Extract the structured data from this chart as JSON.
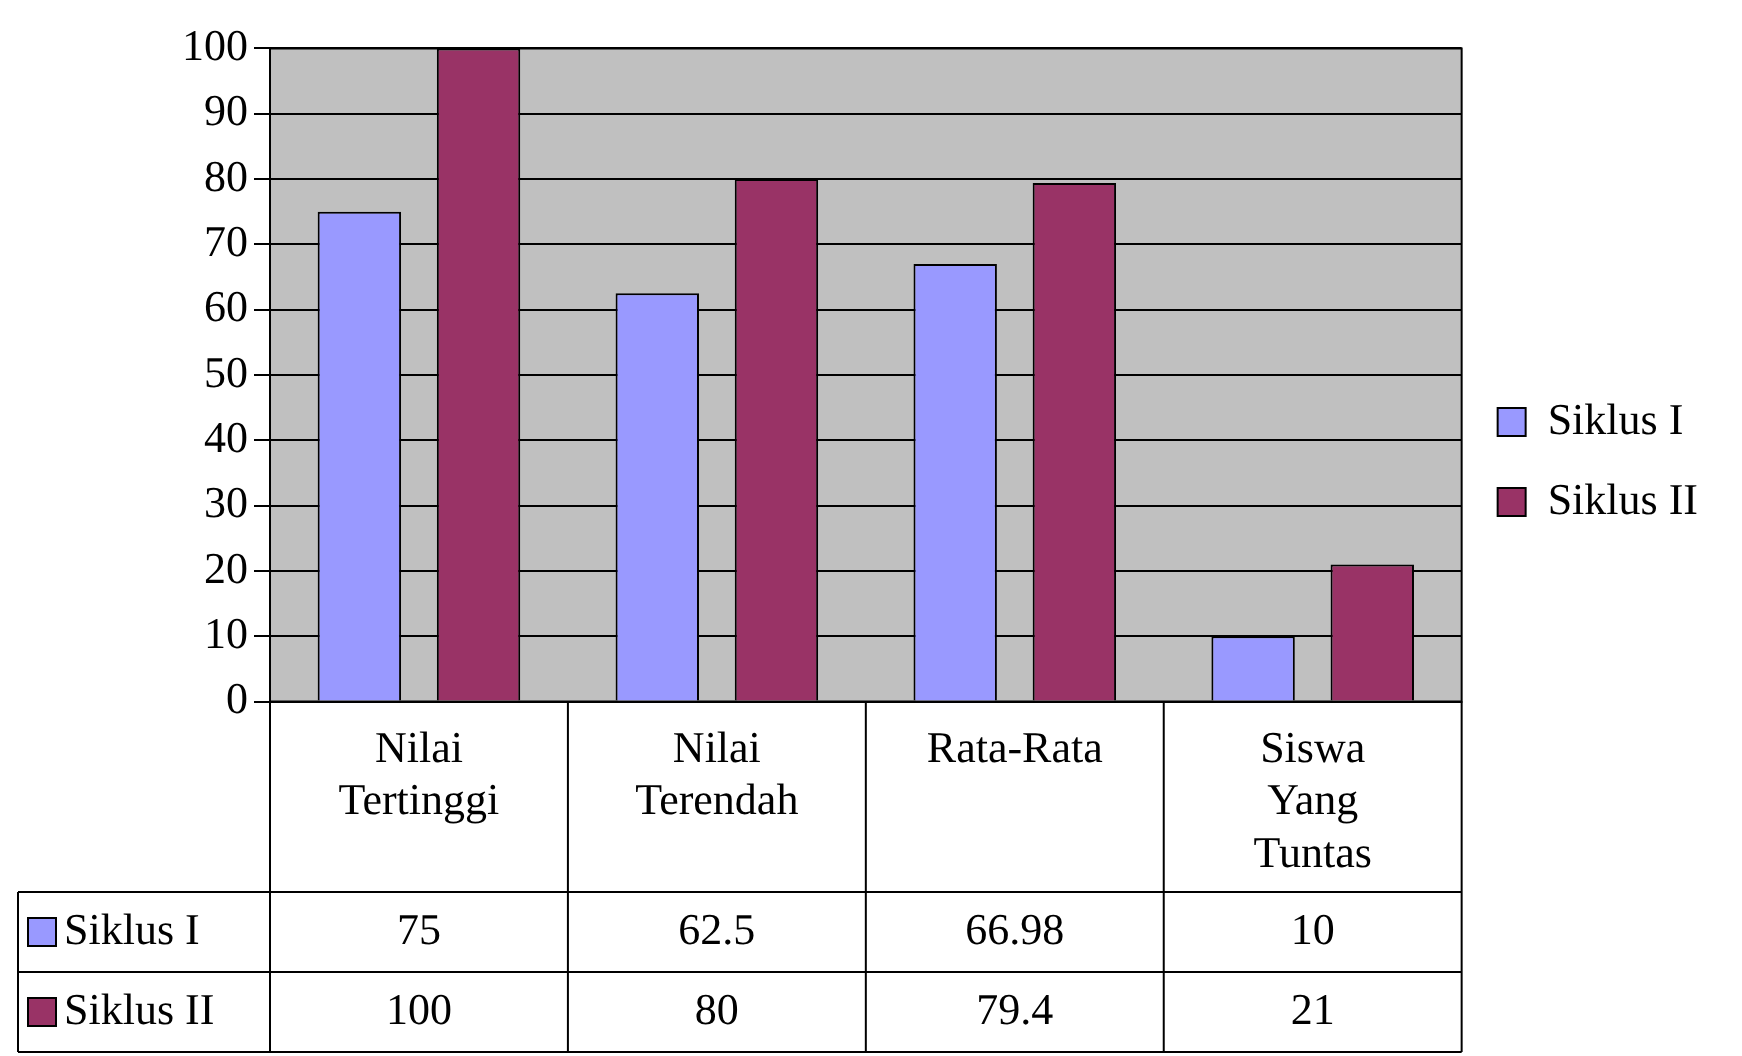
{
  "chart_data": {
    "type": "bar",
    "categories": [
      "Nilai Tertinggi",
      "Nilai Terendah",
      "Rata-Rata",
      "Siswa Yang Tuntas"
    ],
    "series": [
      {
        "name": "Siklus I",
        "color": "#9999ff",
        "values": [
          75,
          62.5,
          66.98,
          10
        ]
      },
      {
        "name": "Siklus II",
        "color": "#993366",
        "values": [
          100,
          80,
          79.4,
          21
        ]
      }
    ],
    "ylim": [
      0,
      100
    ],
    "yticks": [
      0,
      10,
      20,
      30,
      40,
      50,
      60,
      70,
      80,
      90,
      100
    ],
    "grid": "y",
    "legend": "right",
    "data_labels": true
  }
}
